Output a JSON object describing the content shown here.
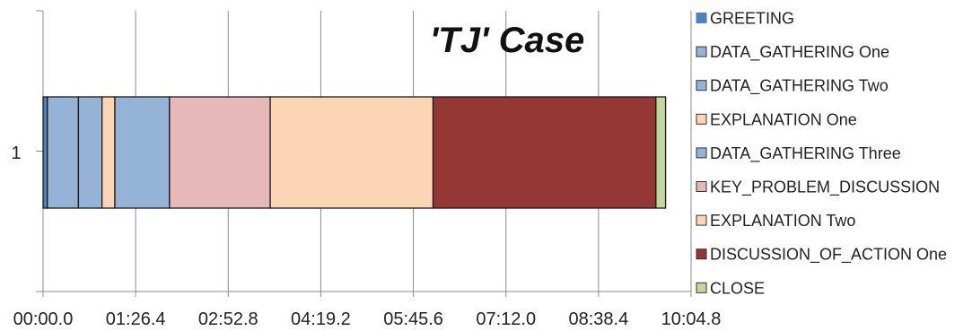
{
  "chart_data": {
    "type": "bar",
    "orientation": "horizontal",
    "stacked": true,
    "title": "'TJ' Case",
    "categories": [
      "1"
    ],
    "x_tick_labels": [
      "00:00.0",
      "01:26.4",
      "02:52.8",
      "04:19.2",
      "05:45.6",
      "07:12.0",
      "08:38.4",
      "10:04.8"
    ],
    "x_tick_seconds": [
      0,
      86.4,
      172.8,
      259.2,
      345.6,
      432.0,
      518.4,
      604.8
    ],
    "xlim_seconds": [
      0,
      604.8
    ],
    "grid": "vertical",
    "legend_position": "right",
    "series": [
      {
        "name": "GREETING",
        "color": "#4f81bd",
        "start": 0,
        "duration": 4
      },
      {
        "name": "DATA_GATHERING One",
        "color": "#95b3d7",
        "start": 4,
        "duration": 29
      },
      {
        "name": "DATA_GATHERING Two",
        "color": "#95b3d7",
        "start": 33,
        "duration": 22
      },
      {
        "name": "EXPLANATION One",
        "color": "#fcd5b4",
        "start": 55,
        "duration": 12
      },
      {
        "name": "DATA_GATHERING Three",
        "color": "#95b3d7",
        "start": 67,
        "duration": 51
      },
      {
        "name": "KEY_PROBLEM_DISCUSSION",
        "color": "#e6b9b8",
        "start": 118,
        "duration": 94
      },
      {
        "name": "EXPLANATION Two",
        "color": "#fcd5b4",
        "start": 212,
        "duration": 152
      },
      {
        "name": "DISCUSSION_OF_ACTION One",
        "color": "#953735",
        "start": 364,
        "duration": 208
      },
      {
        "name": "CLOSE",
        "color": "#c3d69b",
        "start": 572,
        "duration": 9
      }
    ]
  }
}
